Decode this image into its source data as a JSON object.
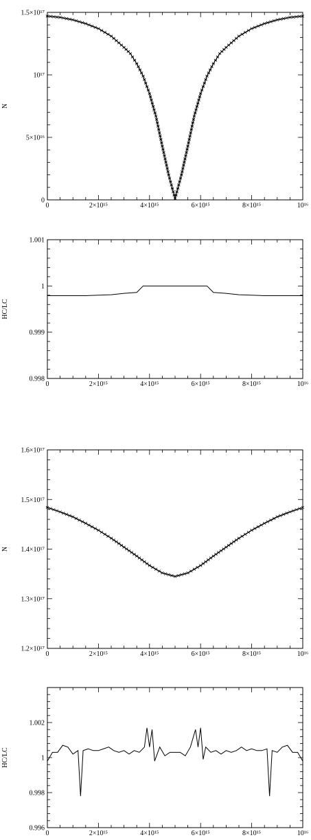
{
  "chart_data": [
    {
      "type": "scatter",
      "title": "",
      "xlabel": "",
      "ylabel": "N",
      "xlim": [
        0,
        1e+16
      ],
      "ylim": [
        0,
        1.5e+17
      ],
      "x_ticks": [
        {
          "value": 0,
          "label": "0"
        },
        {
          "value": 2000000000000000.0,
          "label": "2×10¹⁵"
        },
        {
          "value": 4000000000000000.0,
          "label": "4×10¹⁵"
        },
        {
          "value": 6000000000000000.0,
          "label": "6×10¹⁵"
        },
        {
          "value": 8000000000000000.0,
          "label": "8×10¹⁵"
        },
        {
          "value": 1e+16,
          "label": "10¹⁶"
        }
      ],
      "y_ticks": [
        {
          "value": 0,
          "label": "0"
        },
        {
          "value": 5e+16,
          "label": "5×10¹⁶"
        },
        {
          "value": 1e+17,
          "label": "10¹⁷"
        },
        {
          "value": 1.5e+17,
          "label": "1.5×10¹⁷"
        }
      ],
      "series": [
        {
          "style": "line+markers",
          "x": [
            0,
            500000000000000.0,
            1000000000000000.0,
            1500000000000000.0,
            2000000000000000.0,
            2500000000000000.0,
            3000000000000000.0,
            3250000000000000.0,
            3500000000000000.0,
            3750000000000000.0,
            4000000000000000.0,
            4250000000000000.0,
            4500000000000000.0,
            4750000000000000.0,
            5000000000000000.0,
            5250000000000000.0,
            5500000000000000.0,
            5750000000000000.0,
            6000000000000000.0,
            6250000000000000.0,
            6500000000000000.0,
            6750000000000000.0,
            7000000000000000.0,
            7500000000000000.0,
            8000000000000000.0,
            8500000000000000.0,
            9000000000000000.0,
            9500000000000000.0,
            1e+16
          ],
          "y": [
            1.47e+17,
            1.46e+17,
            1.44e+17,
            1.41e+17,
            1.37e+17,
            1.31e+17,
            1.22e+17,
            1.17e+17,
            1.09e+17,
            9.9e+16,
            8.5e+16,
            6.7e+16,
            4.3e+16,
            2e+16,
            1000000000000000.0,
            2e+16,
            4.3e+16,
            6.7e+16,
            8.5e+16,
            9.9e+16,
            1.09e+17,
            1.17e+17,
            1.22e+17,
            1.31e+17,
            1.37e+17,
            1.41e+17,
            1.44e+17,
            1.46e+17,
            1.47e+17
          ]
        }
      ]
    },
    {
      "type": "line",
      "title": "",
      "xlabel": "",
      "ylabel": "HC/LC",
      "xlim": [
        0,
        1e+16
      ],
      "ylim": [
        0.998,
        1.001
      ],
      "x_ticks": [
        {
          "value": 0,
          "label": "0"
        },
        {
          "value": 2000000000000000.0,
          "label": "2×10¹⁵"
        },
        {
          "value": 4000000000000000.0,
          "label": "4×10¹⁵"
        },
        {
          "value": 6000000000000000.0,
          "label": "6×10¹⁵"
        },
        {
          "value": 8000000000000000.0,
          "label": "8×10¹⁵"
        },
        {
          "value": 1e+16,
          "label": "10¹⁶"
        }
      ],
      "y_ticks": [
        {
          "value": 0.998,
          "label": "0.998"
        },
        {
          "value": 0.999,
          "label": "0.999"
        },
        {
          "value": 1.0,
          "label": "1"
        },
        {
          "value": 1.001,
          "label": "1.001"
        }
      ],
      "series": [
        {
          "style": "line",
          "x": [
            0,
            1000000000000000.0,
            1500000000000000.0,
            2000000000000000.0,
            2500000000000000.0,
            3000000000000000.0,
            3500000000000000.0,
            3750000000000000.0,
            4000000000000000.0,
            5000000000000000.0,
            6000000000000000.0,
            6250000000000000.0,
            6500000000000000.0,
            7000000000000000.0,
            7500000000000000.0,
            8000000000000000.0,
            8500000000000000.0,
            9000000000000000.0,
            1e+16
          ],
          "y": [
            0.99979,
            0.99979,
            0.99979,
            0.9998,
            0.99981,
            0.99984,
            0.99986,
            1.0,
            1.0,
            1.0,
            1.0,
            1.0,
            0.99986,
            0.99984,
            0.99981,
            0.9998,
            0.99979,
            0.99979,
            0.99979
          ]
        }
      ]
    },
    {
      "type": "scatter",
      "title": "",
      "xlabel": "",
      "ylabel": "N",
      "xlim": [
        0,
        1e+16
      ],
      "ylim": [
        1.2e+17,
        1.6e+17
      ],
      "x_ticks": [
        {
          "value": 0,
          "label": "0"
        },
        {
          "value": 2000000000000000.0,
          "label": "2×10¹⁵"
        },
        {
          "value": 4000000000000000.0,
          "label": "4×10¹⁵"
        },
        {
          "value": 6000000000000000.0,
          "label": "6×10¹⁵"
        },
        {
          "value": 8000000000000000.0,
          "label": "8×10¹⁵"
        },
        {
          "value": 1e+16,
          "label": "10¹⁶"
        }
      ],
      "y_ticks": [
        {
          "value": 1.2e+17,
          "label": "1.2×10¹⁷"
        },
        {
          "value": 1.3e+17,
          "label": "1.3×10¹⁷"
        },
        {
          "value": 1.4e+17,
          "label": "1.4×10¹⁷"
        },
        {
          "value": 1.5e+17,
          "label": "1.5×10¹⁷"
        },
        {
          "value": 1.6e+17,
          "label": "1.6×10¹⁷"
        }
      ],
      "series": [
        {
          "style": "line+markers",
          "x": [
            0,
            500000000000000.0,
            1000000000000000.0,
            1500000000000000.0,
            2000000000000000.0,
            2500000000000000.0,
            3000000000000000.0,
            3500000000000000.0,
            4000000000000000.0,
            4500000000000000.0,
            5000000000000000.0,
            5500000000000000.0,
            6000000000000000.0,
            6500000000000000.0,
            7000000000000000.0,
            7500000000000000.0,
            8000000000000000.0,
            8500000000000000.0,
            9000000000000000.0,
            9500000000000000.0,
            1e+16
          ],
          "y": [
            1.484e+17,
            1.475e+17,
            1.465e+17,
            1.452e+17,
            1.438e+17,
            1.422e+17,
            1.404e+17,
            1.386e+17,
            1.367e+17,
            1.352e+17,
            1.345e+17,
            1.352e+17,
            1.367e+17,
            1.386e+17,
            1.404e+17,
            1.422e+17,
            1.438e+17,
            1.452e+17,
            1.465e+17,
            1.475e+17,
            1.484e+17
          ]
        }
      ]
    },
    {
      "type": "line",
      "title": "",
      "xlabel": "",
      "ylabel": "HC/LC",
      "xlim": [
        0,
        1e+16
      ],
      "ylim": [
        0.996,
        1.004
      ],
      "x_ticks": [
        {
          "value": 0,
          "label": "0"
        },
        {
          "value": 2000000000000000.0,
          "label": "2×10¹⁵"
        },
        {
          "value": 4000000000000000.0,
          "label": "4×10¹⁵"
        },
        {
          "value": 6000000000000000.0,
          "label": "6×10¹⁵"
        },
        {
          "value": 8000000000000000.0,
          "label": "8×10¹⁵"
        },
        {
          "value": 1e+16,
          "label": "10¹⁶"
        }
      ],
      "y_ticks": [
        {
          "value": 0.996,
          "label": "0.996"
        },
        {
          "value": 0.998,
          "label": "0.998"
        },
        {
          "value": 1.0,
          "label": "1"
        },
        {
          "value": 1.002,
          "label": "1.002"
        }
      ],
      "series": [
        {
          "style": "line",
          "x": [
            0,
            200000000000000.0,
            400000000000000.0,
            600000000000000.0,
            800000000000000.0,
            1000000000000000.0,
            1200000000000000.0,
            1300000000000000.0,
            1400000000000000.0,
            1600000000000000.0,
            1800000000000000.0,
            2000000000000000.0,
            2200000000000000.0,
            2400000000000000.0,
            2600000000000000.0,
            2800000000000000.0,
            3000000000000000.0,
            3200000000000000.0,
            3400000000000000.0,
            3600000000000000.0,
            3800000000000000.0,
            3900000000000000.0,
            4000000000000000.0,
            4100000000000000.0,
            4200000000000000.0,
            4400000000000000.0,
            4600000000000000.0,
            4800000000000000.0,
            5000000000000000.0,
            5200000000000000.0,
            5400000000000000.0,
            5600000000000000.0,
            5800000000000000.0,
            5900000000000000.0,
            6000000000000000.0,
            6100000000000000.0,
            6200000000000000.0,
            6400000000000000.0,
            6600000000000000.0,
            6800000000000000.0,
            7000000000000000.0,
            7200000000000000.0,
            7400000000000000.0,
            7600000000000000.0,
            7800000000000000.0,
            8000000000000000.0,
            8200000000000000.0,
            8400000000000000.0,
            8600000000000000.0,
            8700000000000000.0,
            8800000000000000.0,
            9000000000000000.0,
            9200000000000000.0,
            9400000000000000.0,
            9600000000000000.0,
            9800000000000000.0,
            1e+16
          ],
          "y": [
            0.9998,
            1.0003,
            1.0003,
            1.0007,
            1.0006,
            1.0002,
            1.0004,
            0.9978,
            1.0004,
            1.0005,
            1.0004,
            1.0004,
            1.0005,
            1.0006,
            1.0004,
            1.0003,
            1.0004,
            1.0002,
            1.0004,
            1.0003,
            1.0006,
            1.0017,
            1.0006,
            1.0016,
            0.9998,
            1.0006,
            1.0001,
            1.0003,
            1.0003,
            1.0003,
            1.0001,
            1.0006,
            1.0016,
            1.0006,
            1.0017,
            0.9999,
            1.0006,
            1.0003,
            1.0004,
            1.0002,
            1.0004,
            1.0003,
            1.0004,
            1.0006,
            1.0004,
            1.0005,
            1.0004,
            1.0004,
            1.0005,
            0.9978,
            1.0004,
            1.0003,
            1.0006,
            1.0007,
            1.0003,
            1.0003,
            0.9998
          ]
        }
      ]
    }
  ]
}
